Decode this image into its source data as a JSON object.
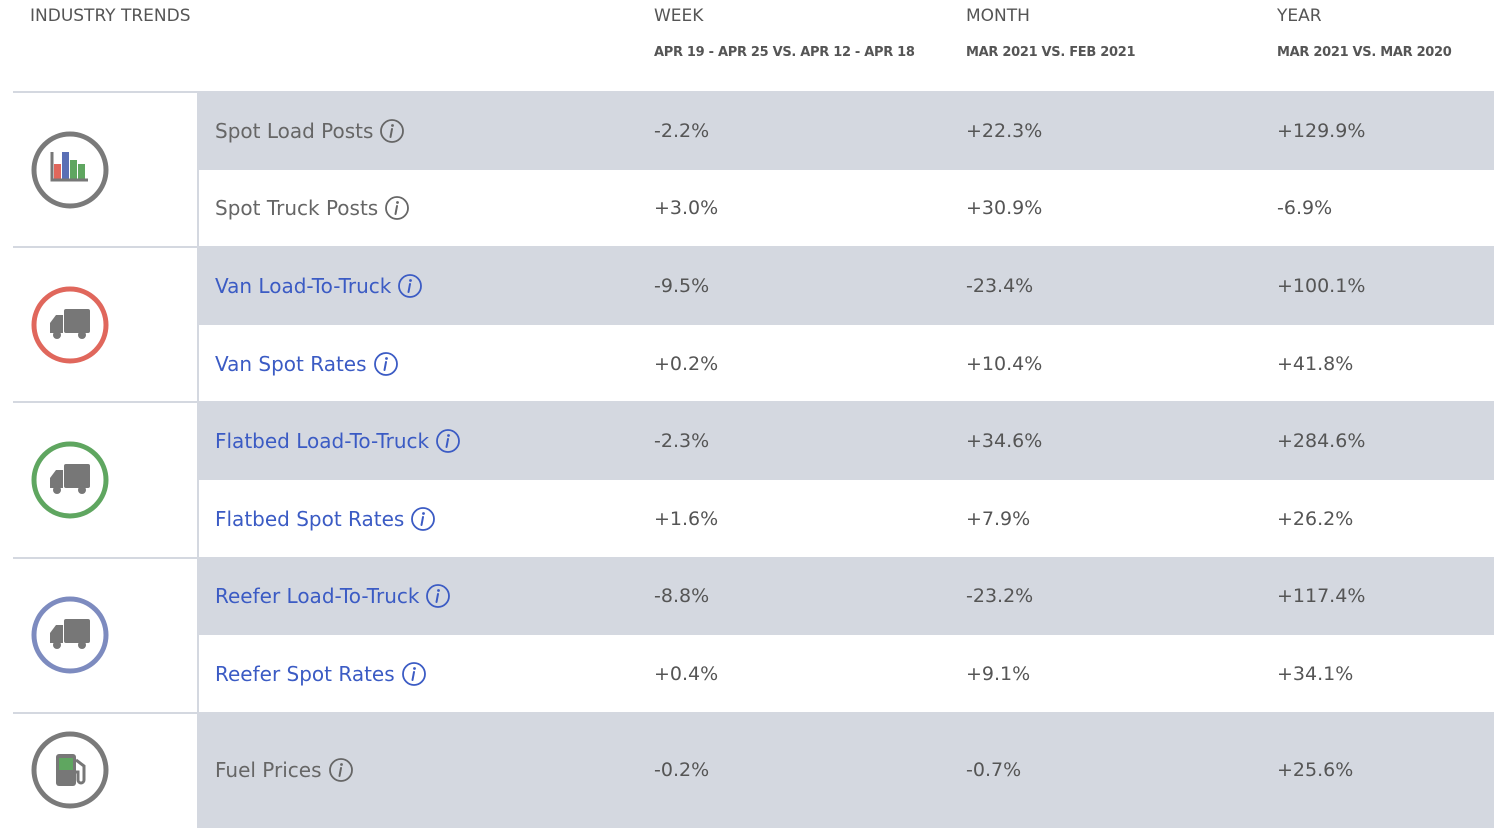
{
  "header": {
    "title": "INDUSTRY TRENDS"
  },
  "columns": [
    {
      "name": "WEEK",
      "subtitle": "APR 19 - APR 25 VS. APR 12 - APR 18"
    },
    {
      "name": "MONTH",
      "subtitle": "MAR 2021 VS. FEB 2021"
    },
    {
      "name": "YEAR",
      "subtitle": "MAR 2021 VS. MAR 2020"
    }
  ],
  "groups": [
    {
      "rows": [
        {
          "label": "Spot Load Posts",
          "values": [
            "-2.2%",
            "+22.3%",
            "+129.9%"
          ]
        },
        {
          "label": "Spot Truck Posts",
          "values": [
            "+3.0%",
            "+30.9%",
            "-6.9%"
          ]
        }
      ]
    },
    {
      "rows": [
        {
          "label": "Van Load-To-Truck",
          "values": [
            "-9.5%",
            "-23.4%",
            "+100.1%"
          ]
        },
        {
          "label": "Van Spot Rates",
          "values": [
            "+0.2%",
            "+10.4%",
            "+41.8%"
          ]
        }
      ]
    },
    {
      "rows": [
        {
          "label": "Flatbed Load-To-Truck",
          "values": [
            "-2.3%",
            "+34.6%",
            "+284.6%"
          ]
        },
        {
          "label": "Flatbed Spot Rates",
          "values": [
            "+1.6%",
            "+7.9%",
            "+26.2%"
          ]
        }
      ]
    },
    {
      "rows": [
        {
          "label": "Reefer Load-To-Truck",
          "values": [
            "-8.8%",
            "-23.2%",
            "+117.4%"
          ]
        },
        {
          "label": "Reefer Spot Rates",
          "values": [
            "+0.4%",
            "+9.1%",
            "+34.1%"
          ]
        }
      ]
    },
    {
      "rows": [
        {
          "label": "Fuel Prices",
          "values": [
            "-0.2%",
            "-0.7%",
            "+25.6%"
          ]
        }
      ]
    }
  ]
}
